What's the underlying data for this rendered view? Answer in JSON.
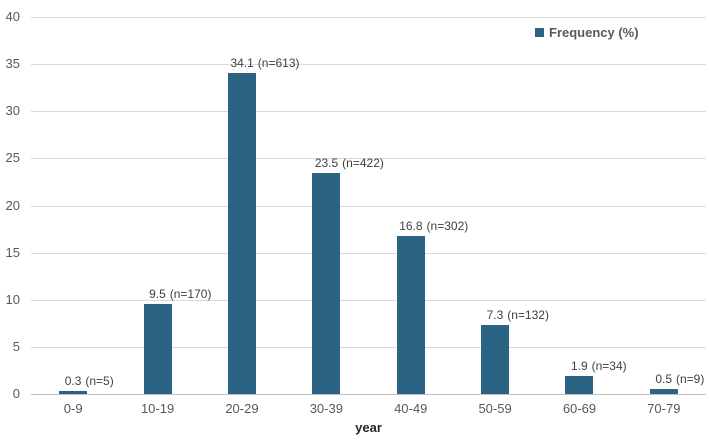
{
  "chart_data": {
    "type": "bar",
    "title": "",
    "categories": [
      "0-9",
      "10-19",
      "20-29",
      "30-39",
      "40-49",
      "50-59",
      "60-69",
      "70-79"
    ],
    "series": [
      {
        "name": "Frequency (%)",
        "values": [
          0.3,
          9.5,
          34.1,
          23.5,
          16.8,
          7.3,
          1.9,
          0.5
        ],
        "counts": [
          5,
          170,
          613,
          422,
          302,
          132,
          34,
          9
        ],
        "data_labels": [
          {
            "value": "0.3",
            "count": "(n=5)"
          },
          {
            "value": "9.5",
            "count": "(n=170)"
          },
          {
            "value": "34.1",
            "count": "(n=613)"
          },
          {
            "value": "23.5",
            "count": "(n=422)"
          },
          {
            "value": "16.8",
            "count": "(n=302)"
          },
          {
            "value": "7.3",
            "count": "(n=132)"
          },
          {
            "value": "1.9",
            "count": "(n=34)"
          },
          {
            "value": "0.5",
            "count": "(n=9)"
          }
        ]
      }
    ],
    "xlabel": "year",
    "ylabel": "",
    "ylim": [
      0,
      40
    ],
    "yticks": [
      0,
      5,
      10,
      15,
      20,
      25,
      30,
      35,
      40
    ],
    "grid": "horizontal",
    "legend": {
      "label": "Frequency (%)",
      "position": "top-right"
    }
  },
  "colors": {
    "bar": "#2B6384",
    "gridline": "#D9D9D9",
    "axis_line": "#BFBFBF",
    "tick_label": "#595959",
    "data_label": "#404040",
    "axis_title": "#262626",
    "legend_text": "#595959",
    "background": "#FFFFFF"
  }
}
